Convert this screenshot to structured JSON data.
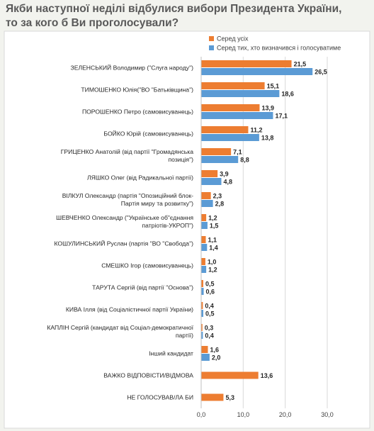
{
  "title": {
    "line1": "Якби наступної неділі відбулися вибори Президента України,",
    "line2": "то за кого б Ви проголосували?"
  },
  "chart_data": {
    "type": "bar",
    "orientation": "horizontal",
    "title": "Якби наступної неділі відбулися вибори Президента України, то за кого б Ви проголосували?",
    "xlim": [
      0,
      30
    ],
    "xticks": [
      "0,0",
      "10,0",
      "20,0",
      "30,0"
    ],
    "grid": true,
    "legend_position": "top-right",
    "series": [
      {
        "name": "Серед усіх",
        "color": "#ed7d31",
        "values": [
          21.5,
          15.1,
          13.9,
          11.2,
          7.1,
          3.9,
          2.3,
          1.2,
          1.1,
          1.0,
          0.5,
          0.4,
          0.3,
          1.6,
          13.6,
          5.3
        ],
        "labels": [
          "21,5",
          "15,1",
          "13,9",
          "11,2",
          "7,1",
          "3,9",
          "2,3",
          "1,2",
          "1,1",
          "1,0",
          "0,5",
          "0,4",
          "0,3",
          "1,6",
          "13,6",
          "5,3"
        ]
      },
      {
        "name": "Серед тих, хто визначився і голосуватиме",
        "color": "#5b9bd5",
        "values": [
          26.5,
          18.6,
          17.1,
          13.8,
          8.8,
          4.8,
          2.8,
          1.5,
          1.4,
          1.2,
          0.6,
          0.5,
          0.4,
          2.0,
          null,
          null
        ],
        "labels": [
          "26,5",
          "18,6",
          "17,1",
          "13,8",
          "8,8",
          "4,8",
          "2,8",
          "1,5",
          "1,4",
          "1,2",
          "0,6",
          "0,5",
          "0,4",
          "2,0",
          "",
          ""
        ]
      }
    ],
    "categories": [
      [
        "ЗЕЛЕНСЬКИЙ Володимир (\"Слуга народу\")"
      ],
      [
        "ТИМОШЕНКО Юлія(\"ВО \"Батьківщина\")"
      ],
      [
        "ПОРОШЕНКО Петро (самовисуванець)"
      ],
      [
        "БОЙКО Юрій (самовисуванець)"
      ],
      [
        "ГРИЦЕНКО Анатолій (від партії \"Громадянська",
        "позиція\")"
      ],
      [
        "ЛЯШКО Олег (від Радикальної партії)"
      ],
      [
        "ВІЛКУЛ Олександр (партія \"Опозиційний блок-",
        "Партія миру та розвитку\")"
      ],
      [
        "ШЕВЧЕНКО Олександр (\"Українське об\"єднання",
        "патріотів-УКРОП\")"
      ],
      [
        "КОШУЛИНСЬКИЙ Руслан (партія \"ВО \"Свобода\")"
      ],
      [
        "СМЕШКО Ігор (самовисуванець)"
      ],
      [
        "ТАРУТА Сергій (від партії \"Основа\")"
      ],
      [
        "КИВА Ілля (від Соціалістичної партії України)"
      ],
      [
        "КАПЛІН Сергій (кандидат від Соціал-демократичної",
        "партії)"
      ],
      [
        "Інший кандидат"
      ],
      [
        "ВАЖКО ВІДПОВІСТИ/ВІДМОВА"
      ],
      [
        "НЕ ГОЛОСУВАВ/ЛА БИ"
      ]
    ]
  }
}
